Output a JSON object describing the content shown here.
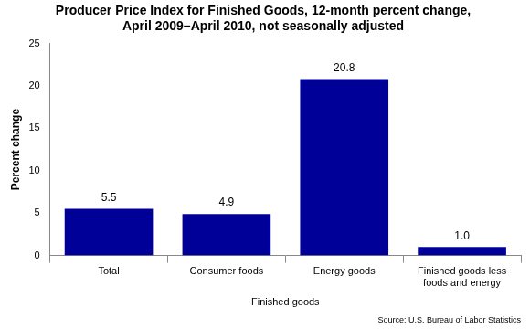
{
  "chart_data": {
    "type": "bar",
    "title": [
      "Producer Price Index for Finished Goods, 12-month percent change,",
      "April 2009–April 2010, not seasonally adjusted"
    ],
    "x_label": "Finished goods",
    "y_label": "Percent change",
    "annotation": "Source: U.S. Bureau of Labor Statistics",
    "categories": [
      "Total",
      "Consumer foods",
      "Energy goods",
      "Finished goods less foods and energy"
    ],
    "values": [
      5.5,
      4.9,
      20.8,
      1.0
    ],
    "value_labels": [
      "5.5",
      "4.9",
      "20.8",
      "1.0"
    ],
    "data_labels": true,
    "color": "#000099",
    "ylim": [
      0,
      25
    ],
    "yticks": [
      0,
      5,
      10,
      15,
      20,
      25
    ],
    "grid": false
  }
}
